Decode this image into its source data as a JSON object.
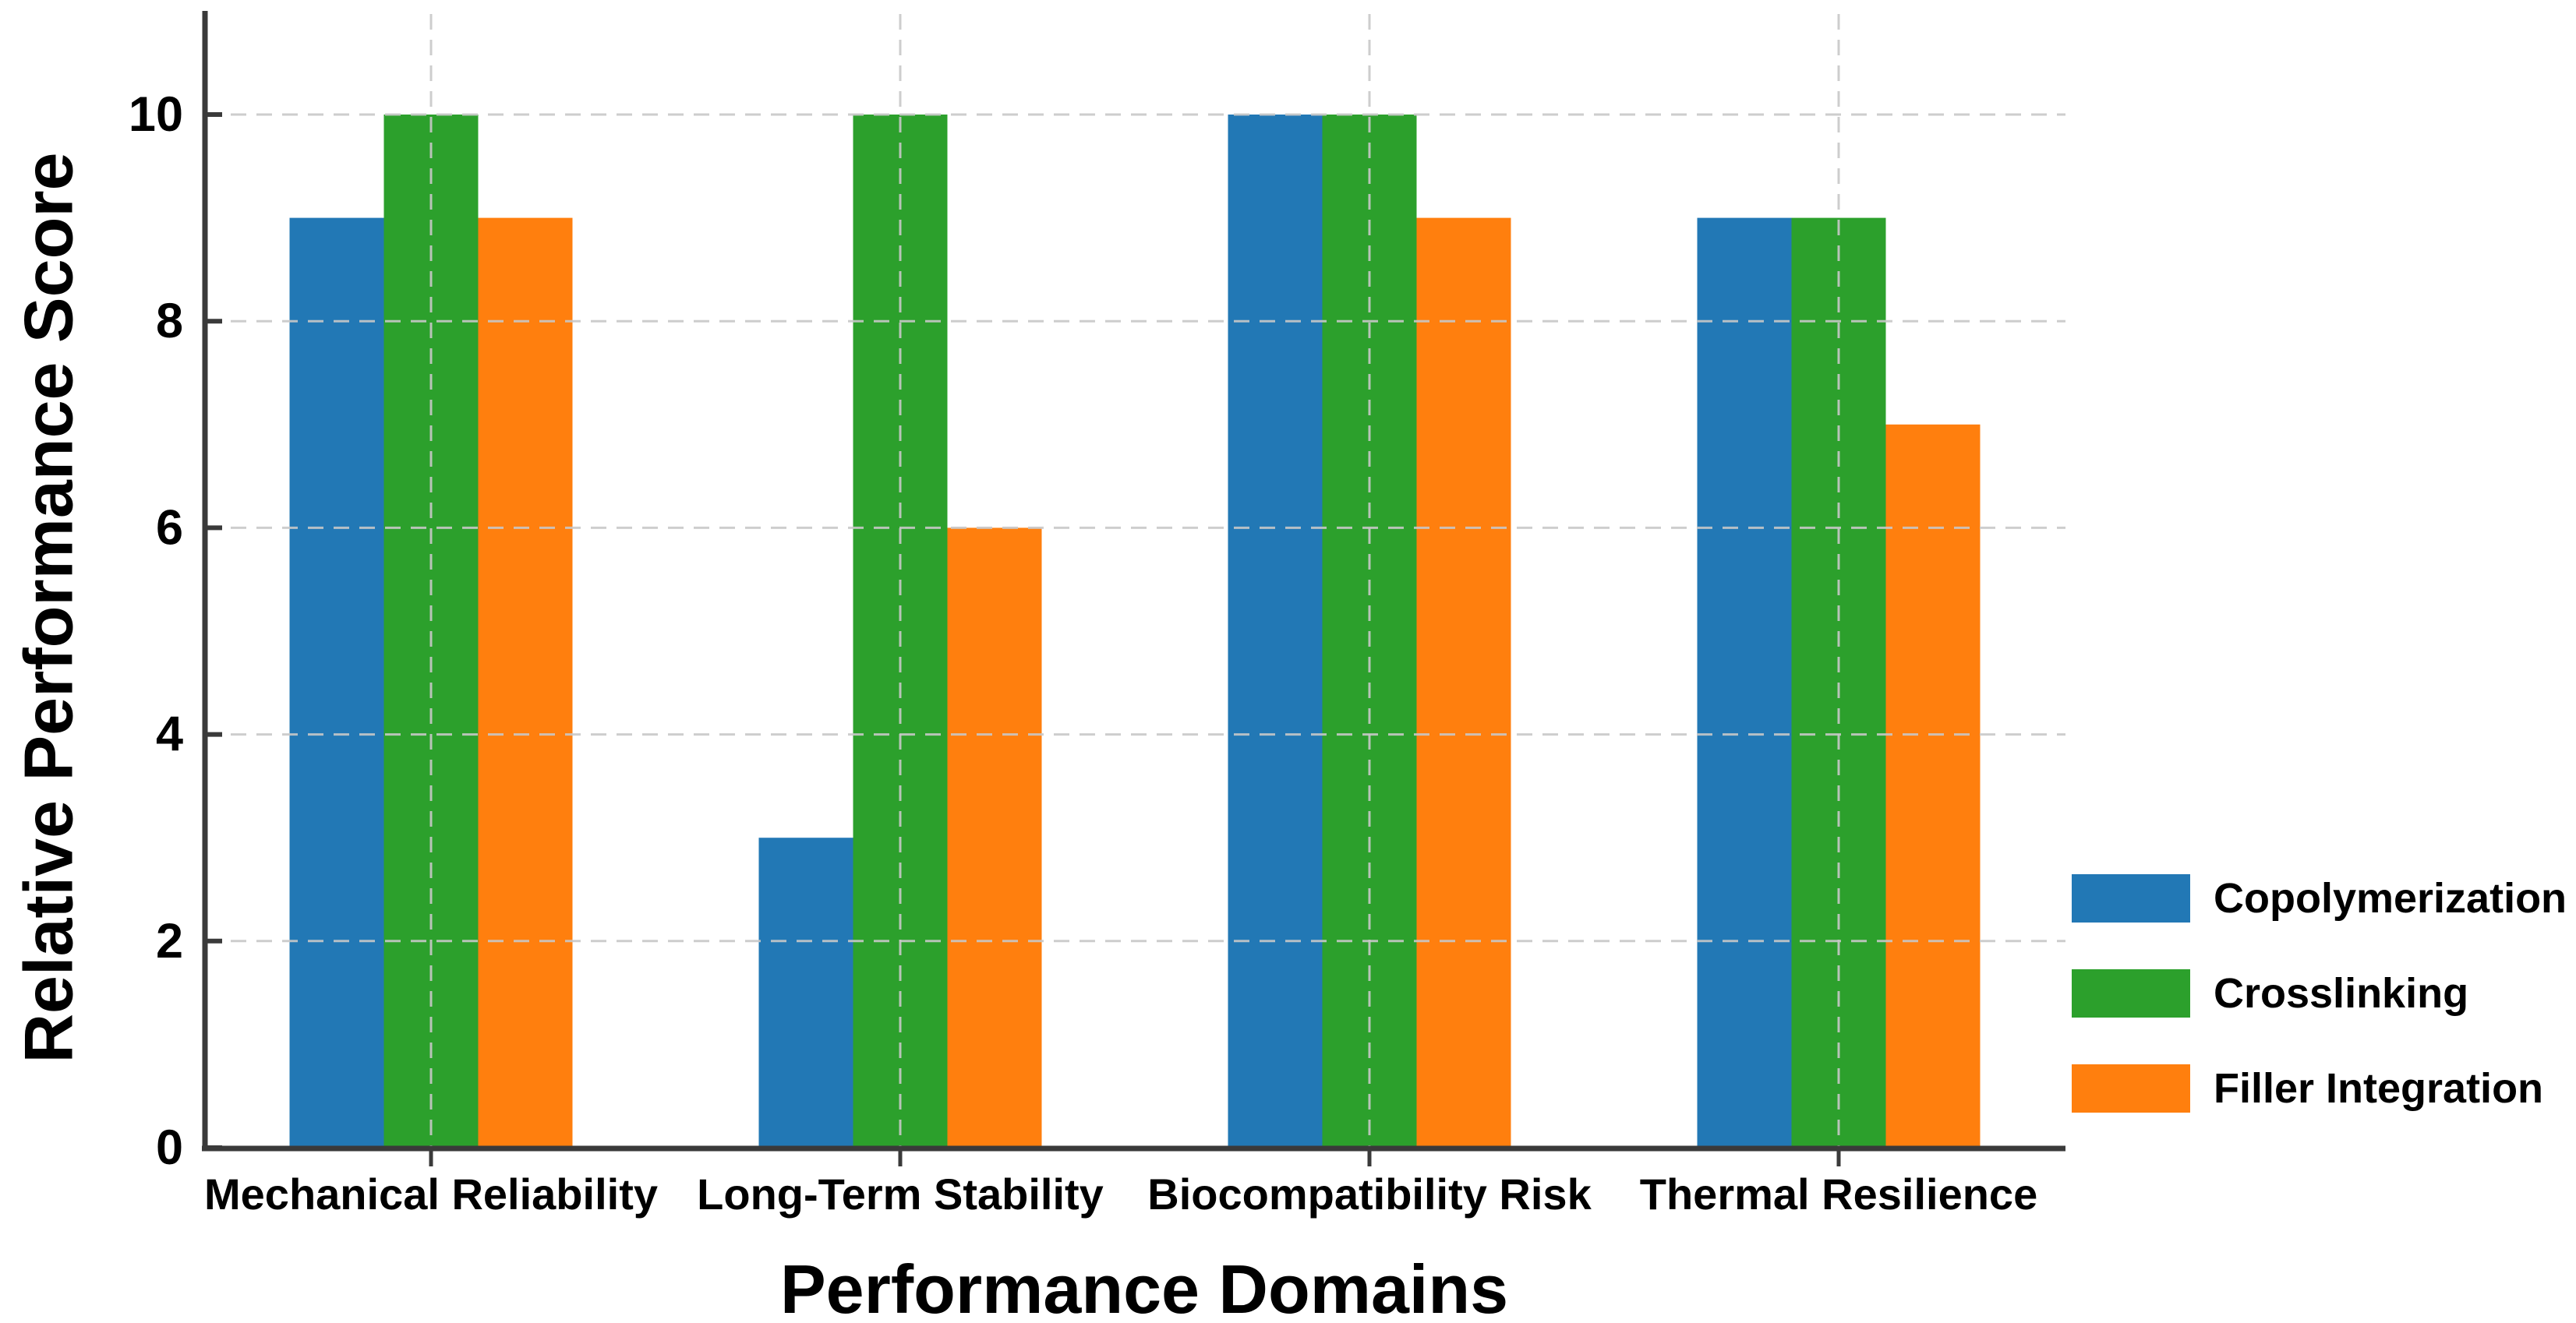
{
  "figure": {
    "background": "#ffffff"
  },
  "chart_data": {
    "type": "bar",
    "title": "",
    "xlabel": "Performance Domains",
    "ylabel": "Relative Performance Score",
    "categories": [
      "Mechanical Reliability",
      "Long-Term Stability",
      "Biocompatibility Risk",
      "Thermal Resilience"
    ],
    "series": [
      {
        "name": "Copolymerization",
        "color": "#2278b5",
        "values": [
          9,
          3,
          10,
          9
        ]
      },
      {
        "name": "Crosslinking",
        "color": "#2ca02c",
        "values": [
          10,
          10,
          10,
          9
        ]
      },
      {
        "name": "Filler Integration",
        "color": "#ff7f0e",
        "values": [
          9,
          6,
          9,
          7
        ]
      }
    ],
    "yticks": [
      0,
      2,
      4,
      6,
      8,
      10
    ],
    "ylim": [
      0,
      11
    ],
    "grid": {
      "show": true,
      "style": "dashed",
      "axes": "both",
      "color": "#c8c8c8"
    },
    "legend_position": "right"
  },
  "colors": {
    "spine": "#3a3a3a",
    "grid": "#c8c8c8",
    "text": "#000000",
    "background": "#ffffff"
  }
}
